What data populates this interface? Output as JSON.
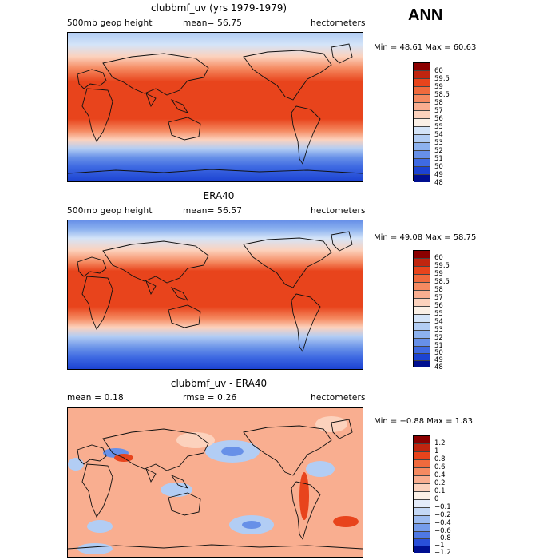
{
  "header": {
    "season": "ANN"
  },
  "panels": [
    {
      "title": "clubbmf_uv (yrs 1979-1979)",
      "left_label": "500mb geop height",
      "mid_label": "mean=   56.75",
      "units": "hectometers",
      "minmax": "Min =   48.61  Max =   60.63",
      "levels": [
        "60",
        "59.5",
        "59",
        "58.5",
        "58",
        "57",
        "56",
        "55",
        "54",
        "53",
        "52",
        "51",
        "50",
        "49",
        "48"
      ]
    },
    {
      "title": "ERA40",
      "left_label": "500mb geop height",
      "mid_label": "mean=   56.57",
      "units": "hectometers",
      "minmax": "Min =   49.08  Max =   58.75",
      "levels": [
        "60",
        "59.5",
        "59",
        "58.5",
        "58",
        "57",
        "56",
        "55",
        "54",
        "53",
        "52",
        "51",
        "50",
        "49",
        "48"
      ]
    },
    {
      "title": "clubbmf_uv - ERA40",
      "left_label": "mean =    0.18",
      "mid_label": "rmse =    0.26",
      "units": "hectometers",
      "minmax": "Min =  −0.88  Max =    1.83",
      "levels": [
        "1.2",
        "1",
        "0.8",
        "0.6",
        "0.4",
        "0.2",
        "0.1",
        "0",
        "−0.1",
        "−0.2",
        "−0.4",
        "−0.6",
        "−0.8",
        "−1",
        "−1.2"
      ]
    }
  ],
  "colors": {
    "abs_scale": [
      "#8b0000",
      "#c0250f",
      "#e8441c",
      "#f06a3d",
      "#f58a61",
      "#f9ae90",
      "#fcd2bd",
      "#fbf0e6",
      "#d4e4f8",
      "#b2cdf4",
      "#8db2ef",
      "#6790e8",
      "#3f6ae2",
      "#1c43d2",
      "#000f90"
    ],
    "diff_scale": [
      "#8b0000",
      "#c0250f",
      "#e8441c",
      "#f06a3d",
      "#f58a61",
      "#f9ae90",
      "#fcd2bd",
      "#fbf0e6",
      "#e4ecfa",
      "#c4d8f6",
      "#9dbcf1",
      "#759ceb",
      "#4f78e4",
      "#2a4fd8",
      "#000f90"
    ]
  }
}
